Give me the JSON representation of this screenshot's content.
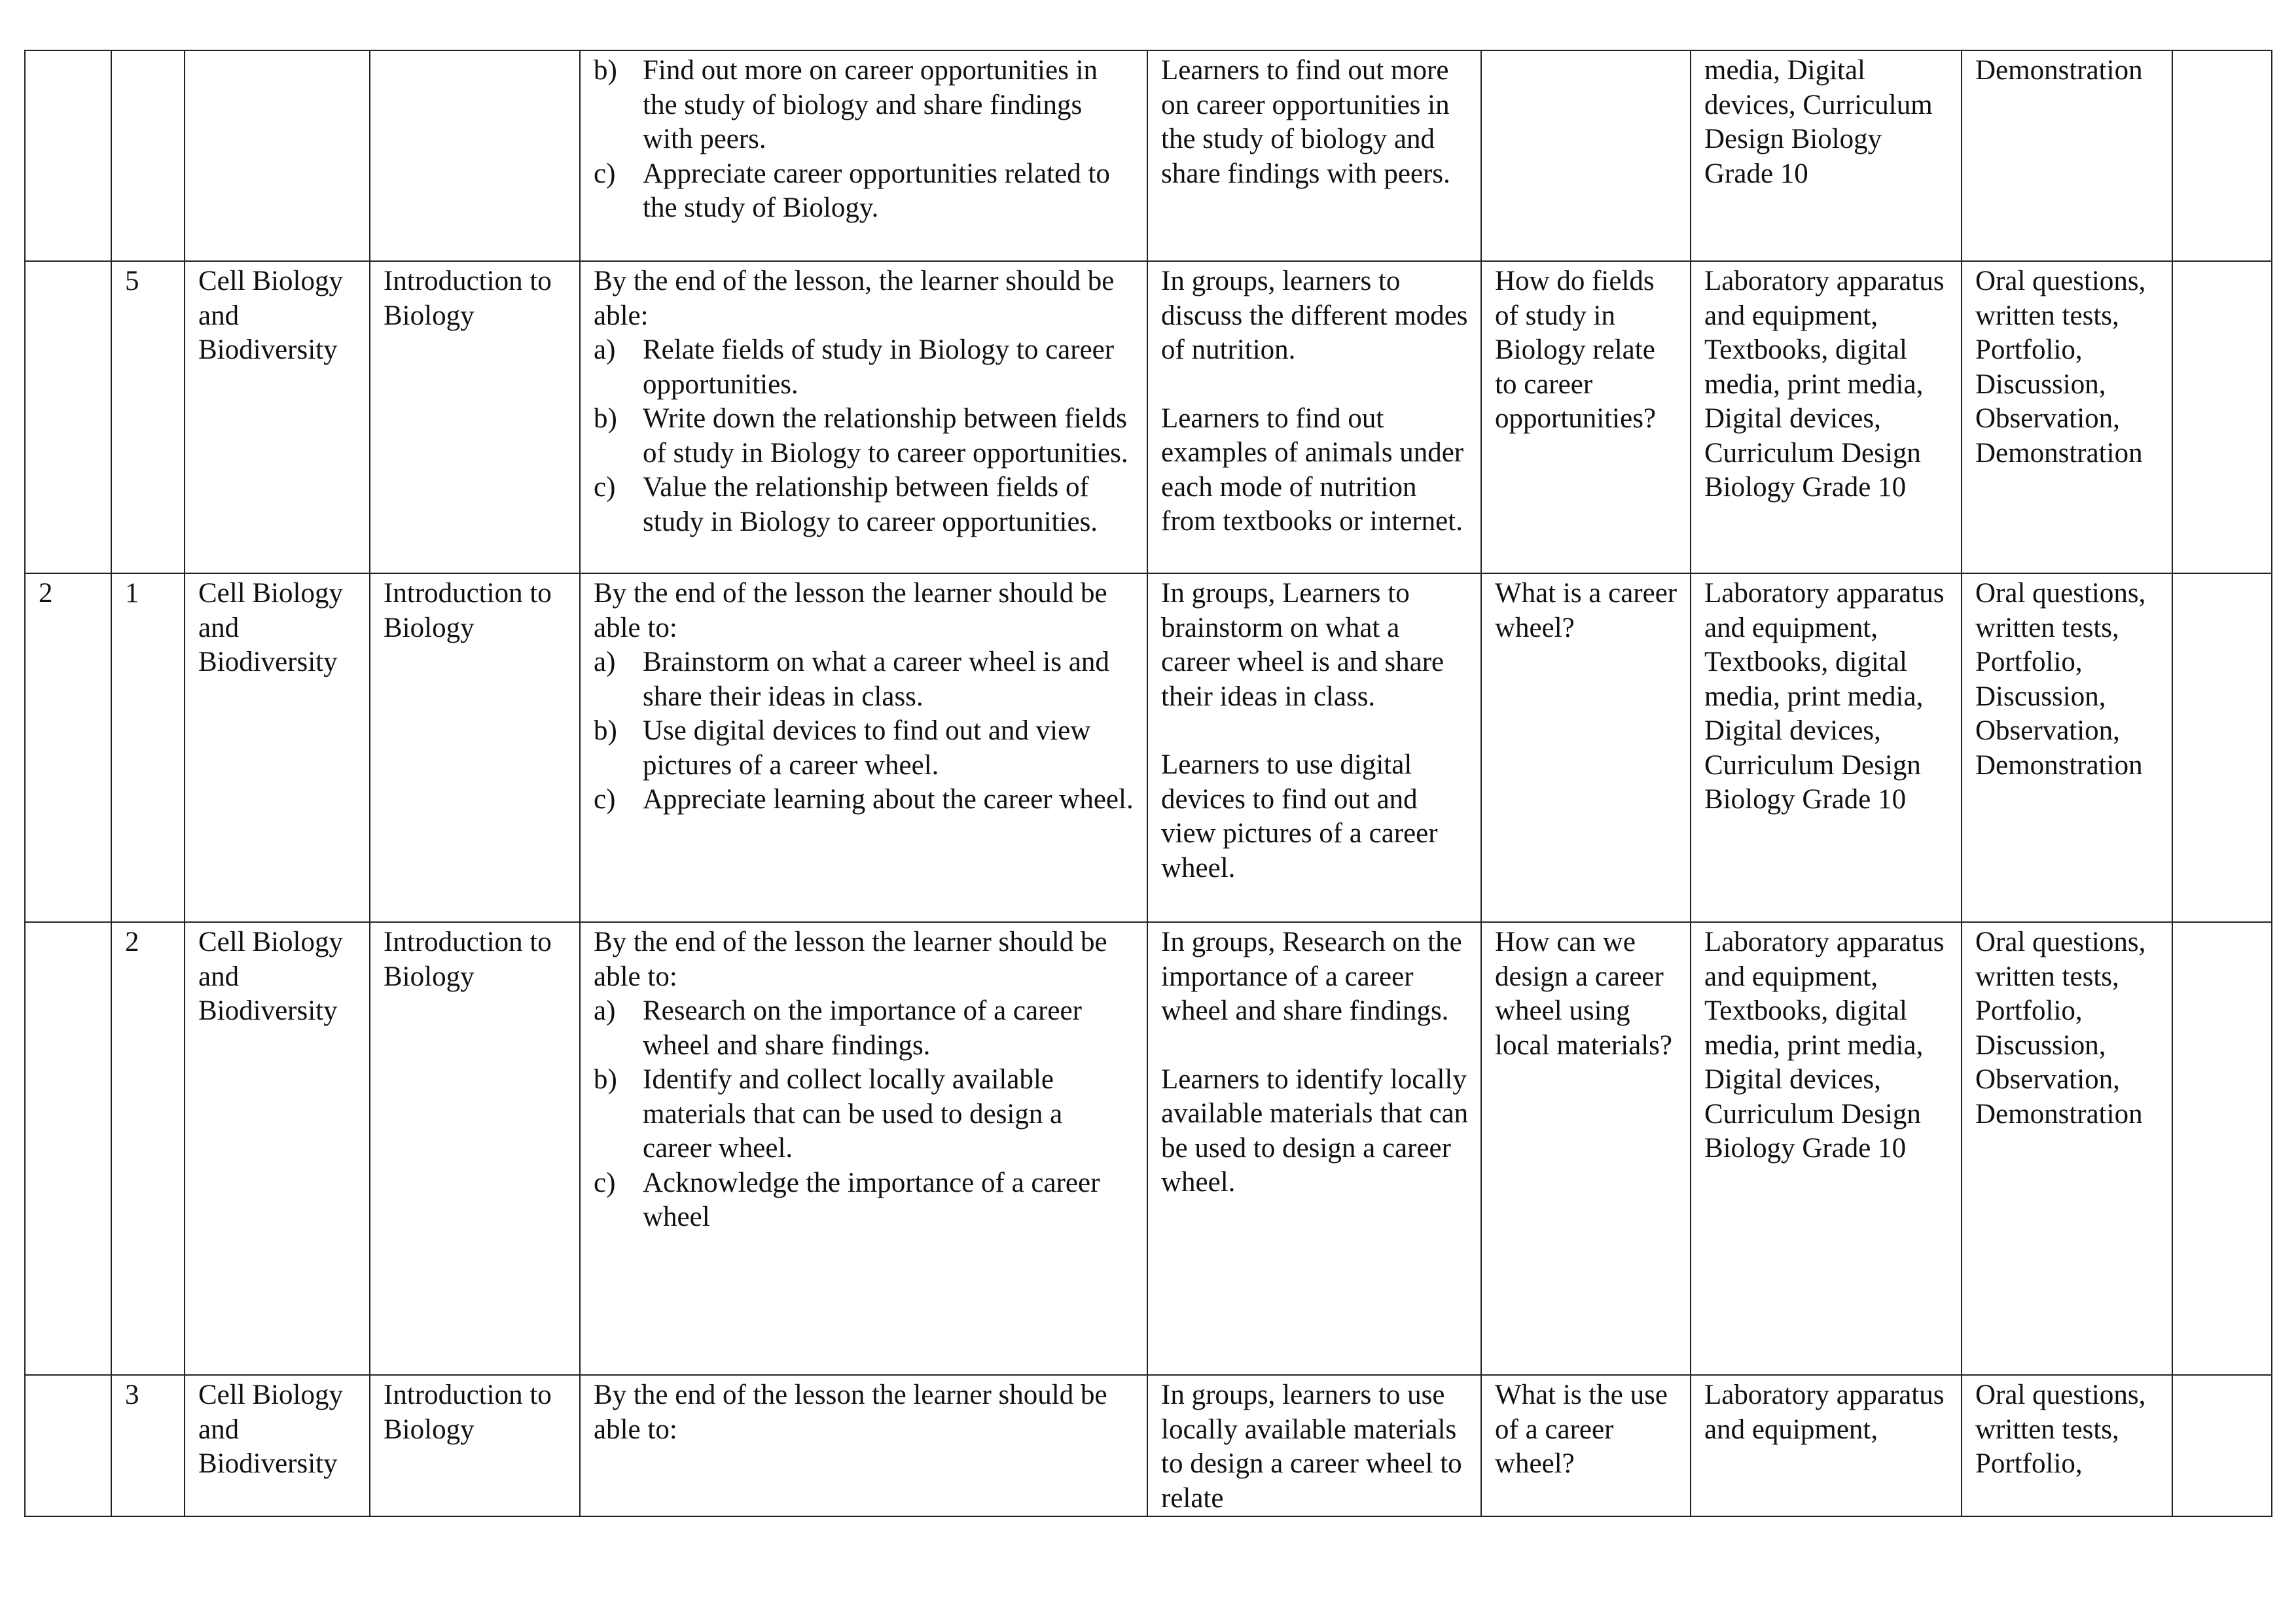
{
  "rows": [
    {
      "week": "",
      "lesson": "",
      "strand": "",
      "sub_strand": "",
      "outcomes_intro": "",
      "outcomes": [
        {
          "marker": "b)",
          "text": "Find out more on career opportunities in the study of biology and share findings with peers."
        },
        {
          "marker": "c)",
          "text": "Appreciate career opportunities related to the study of Biology."
        }
      ],
      "experiences": [
        "Learners to find out more on career opportunities in the study of biology and share findings with peers."
      ],
      "inquiry": "",
      "resources": "media, Digital devices, Curriculum Design Biology Grade 10",
      "assessment": "Demonstration",
      "reflection": ""
    },
    {
      "week": "",
      "lesson": "5",
      "strand": "Cell Biology and Biodiversity",
      "sub_strand": "Introduction to Biology",
      "outcomes_intro": "By the end of the lesson, the learner should be able:",
      "outcomes": [
        {
          "marker": "a)",
          "text": "Relate fields of study in Biology to career opportunities."
        },
        {
          "marker": "b)",
          "text": "Write down the relationship between fields of study in Biology to career opportunities."
        },
        {
          "marker": "c)",
          "text": "Value the relationship between fields of study in Biology to career opportunities."
        }
      ],
      "experiences": [
        "In groups, learners to discuss   the different modes of nutrition.",
        "Learners to find out examples of animals under each mode of nutrition from textbooks or internet."
      ],
      "inquiry": "How do fields of study in Biology relate to career opportunities?",
      "resources": "Laboratory apparatus and equipment, Textbooks, digital media,  print media, Digital devices, Curriculum Design Biology Grade 10",
      "assessment": "Oral questions, written tests, Portfolio, Discussion, Observation, Demonstration",
      "reflection": ""
    },
    {
      "week": "2",
      "lesson": "1",
      "strand": "Cell Biology and Biodiversity",
      "sub_strand": "Introduction to Biology",
      "outcomes_intro": "By the end of the lesson the learner should be able to:",
      "outcomes": [
        {
          "marker": "a)",
          "text": "Brainstorm on what a career wheel is and share their ideas in class."
        },
        {
          "marker": "b)",
          "text": "Use digital devices to find out and view pictures of a career wheel."
        },
        {
          "marker": "c)",
          "text": "Appreciate learning about the career wheel."
        }
      ],
      "experiences": [
        "In groups, Learners to brainstorm on what a career wheel is and share their ideas in class.",
        "Learners to use digital devices to find out and view pictures of a career wheel."
      ],
      "inquiry": "What is a career wheel?",
      "resources": "Laboratory apparatus and equipment, Textbooks, digital media,  print media, Digital devices, Curriculum Design Biology Grade 10",
      "assessment": "Oral questions, written tests, Portfolio, Discussion, Observation, Demonstration",
      "reflection": ""
    },
    {
      "week": "",
      "lesson": "2",
      "strand": "Cell Biology and Biodiversity",
      "sub_strand": "Introduction to Biology",
      "outcomes_intro": "By the end of the lesson the learner should be able to:",
      "outcomes": [
        {
          "marker": "a)",
          "text": "Research on the importance of a career wheel and share findings."
        },
        {
          "marker": "b)",
          "text": "Identify and collect locally available materials that can be used to design a career wheel."
        },
        {
          "marker": "c)",
          "text": "Acknowledge the importance of a career wheel"
        }
      ],
      "experiences": [
        "In groups, Research on the importance of a career wheel and share findings.",
        "Learners to identify locally available materials that can be used to design a career wheel."
      ],
      "inquiry": "How can we design a career wheel using local materials?",
      "resources": "Laboratory apparatus and equipment, Textbooks, digital media,  print media, Digital devices, Curriculum Design Biology Grade 10",
      "assessment": "Oral questions, written tests, Portfolio, Discussion, Observation, Demonstration",
      "reflection": ""
    },
    {
      "week": "",
      "lesson": "3",
      "strand": "Cell Biology and Biodiversity",
      "sub_strand": "Introduction to Biology",
      "outcomes_intro": "By the end of the lesson the learner should be able to:",
      "outcomes": [],
      "experiences": [
        "In groups, learners to use locally available materials to design a career wheel to relate"
      ],
      "inquiry": "What is the use of a career wheel?",
      "resources": "Laboratory apparatus and equipment,",
      "assessment": "Oral questions, written tests, Portfolio,",
      "reflection": ""
    }
  ]
}
